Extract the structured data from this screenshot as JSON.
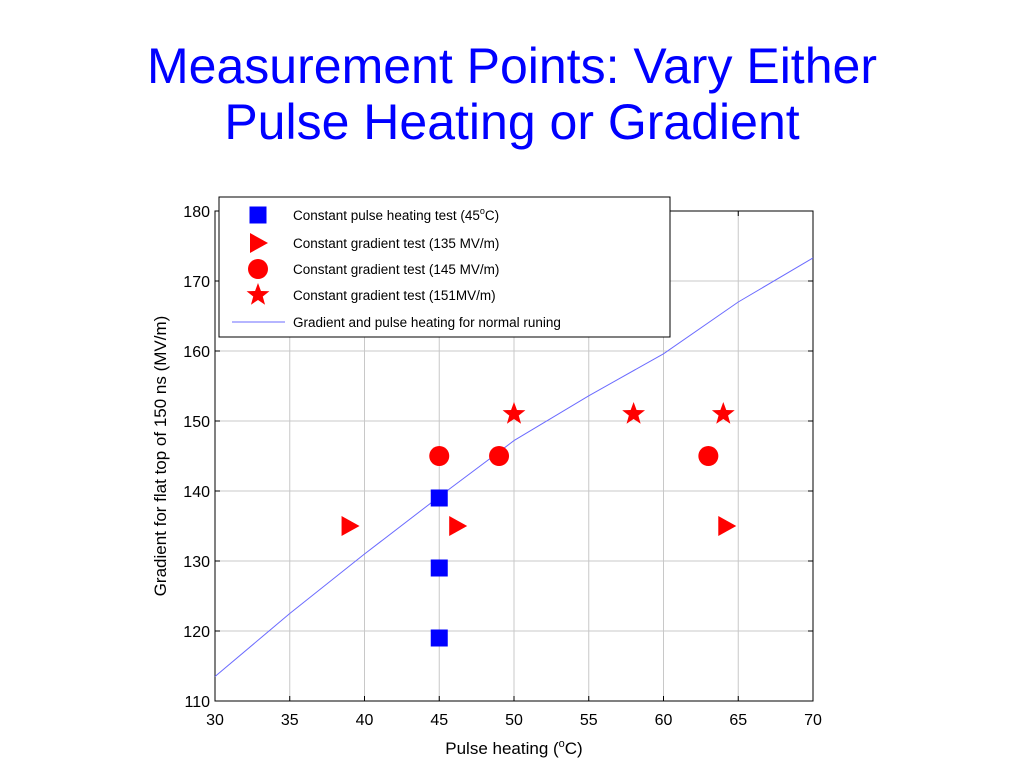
{
  "slide": {
    "title_line1": "Measurement Points: Vary Either",
    "title_line2": "Pulse Heating or Gradient"
  },
  "chart_data": {
    "type": "scatter",
    "xlabel_pre": "Pulse heating (",
    "xlabel_sup": "o",
    "xlabel_post": "C)",
    "ylabel": "Gradient for flat top of 150 ns (MV/m)",
    "xlim": [
      30,
      70
    ],
    "ylim": [
      110,
      180
    ],
    "xticks": [
      30,
      35,
      40,
      45,
      50,
      55,
      60,
      65,
      70
    ],
    "yticks": [
      110,
      120,
      130,
      140,
      150,
      160,
      170,
      180
    ],
    "grid": true,
    "legend_position": "top-left",
    "series": [
      {
        "name_pre": "Constant pulse heating test (45",
        "name_sup": "o",
        "name_post": "C)",
        "marker": "square",
        "color": "#0000ff",
        "points": [
          [
            45,
            139
          ],
          [
            45,
            129
          ],
          [
            45,
            119
          ]
        ]
      },
      {
        "name": "Constant gradient test (135 MV/m)",
        "marker": "triangle-right",
        "color": "#ff0000",
        "points": [
          [
            39,
            135
          ],
          [
            46.2,
            135
          ],
          [
            64.2,
            135
          ]
        ]
      },
      {
        "name": "Constant gradient test (145 MV/m)",
        "marker": "circle",
        "color": "#ff0000",
        "points": [
          [
            45,
            145
          ],
          [
            49,
            145
          ],
          [
            63,
            145
          ]
        ]
      },
      {
        "name": "Constant gradient test (151MV/m)",
        "marker": "star",
        "color": "#ff0000",
        "points": [
          [
            50,
            151
          ],
          [
            58,
            151
          ],
          [
            64,
            151
          ]
        ]
      },
      {
        "name": "Gradient and pulse heating for normal runing",
        "marker": "line",
        "color": "#6b6bff",
        "points": [
          [
            30,
            113.5
          ],
          [
            35,
            122.5
          ],
          [
            40,
            131
          ],
          [
            45,
            139.2
          ],
          [
            50,
            147.2
          ],
          [
            55,
            153.6
          ],
          [
            60,
            159.6
          ],
          [
            65,
            167
          ],
          [
            70,
            173.3
          ]
        ]
      }
    ]
  }
}
